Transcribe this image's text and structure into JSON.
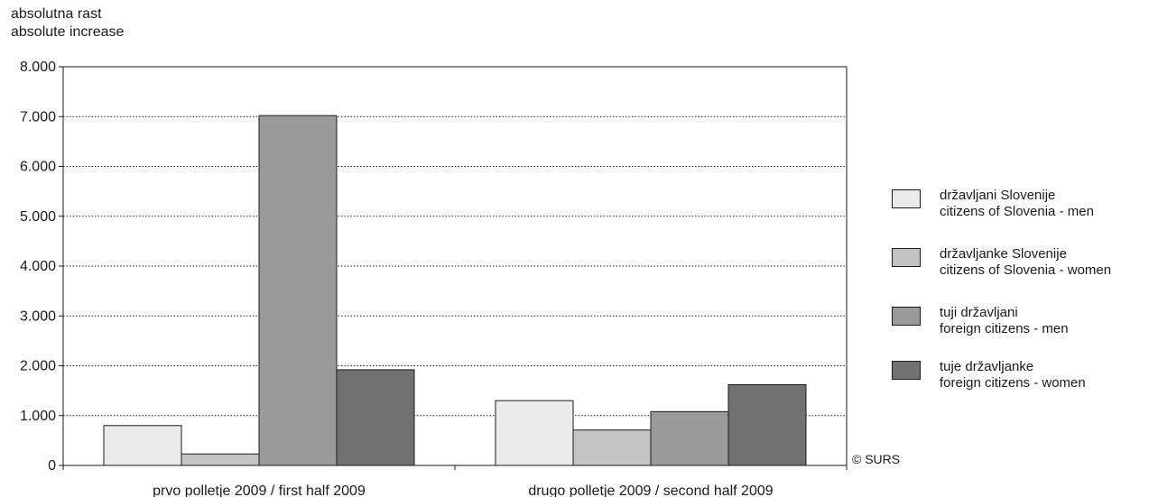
{
  "chart_data": {
    "type": "bar",
    "ylabel_lines": [
      "absolutna rast",
      "absolute increase"
    ],
    "categories": [
      "prvo polletje 2009 / first half 2009",
      "drugo polletje 2009 / second half 2009"
    ],
    "series": [
      {
        "name_lines": [
          "državljani Slovenije",
          "citizens of Slovenia - men"
        ],
        "color": "#ebebeb",
        "values": [
          800,
          1300
        ]
      },
      {
        "name_lines": [
          "državljanke Slovenije",
          "citizens of Slovenia - women"
        ],
        "color": "#c4c4c4",
        "values": [
          230,
          710
        ]
      },
      {
        "name_lines": [
          "tuji državljani",
          "foreign citizens - men"
        ],
        "color": "#9a9a9a",
        "values": [
          7020,
          1080
        ]
      },
      {
        "name_lines": [
          "tuje državljanke",
          "foreign citizens - women"
        ],
        "color": "#717171",
        "values": [
          1920,
          1620
        ]
      }
    ],
    "ylim": [
      0,
      8000
    ],
    "yticks": [
      0,
      1000,
      2000,
      3000,
      4000,
      5000,
      6000,
      7000,
      8000
    ],
    "ytick_labels": [
      "0",
      "1.000",
      "2.000",
      "3.000",
      "4.000",
      "5.000",
      "6.000",
      "7.000",
      "8.000"
    ],
    "grid": "dotted horizontal",
    "legend_position": "right"
  },
  "source": "© SURS"
}
